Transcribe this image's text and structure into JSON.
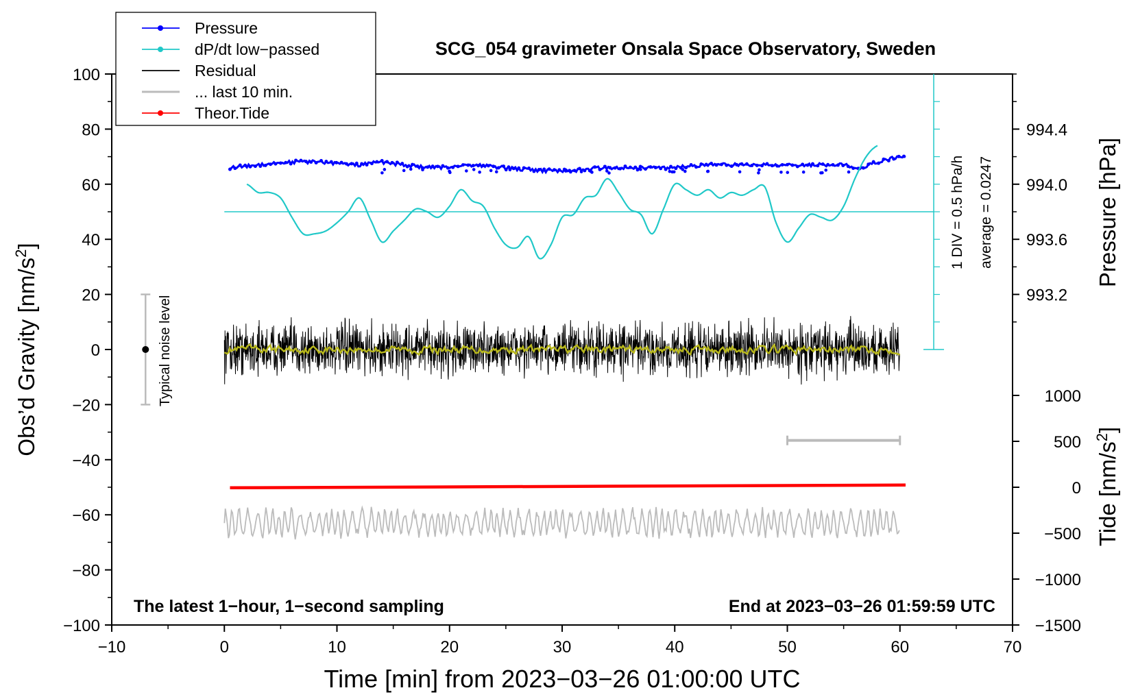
{
  "chart_data": {
    "type": "line",
    "title": "SCG_054 gravimeter Onsala Space Observatory, Sweden",
    "xlabel": "Time [min] from 2023−03−26 01:00:00 UTC",
    "ylabel_left": "Obs’d Gravity [nm/s",
    "ylabel_left_unit_tail": "]",
    "ylabel_right_pressure": "Pressure [hPa]",
    "ylabel_right_tide": "Tide [nm/s",
    "ylabel_right_tide_tail": "]",
    "superscript": "2",
    "xlim": [
      -10,
      70
    ],
    "ylim": [
      -100,
      100
    ],
    "x_ticks": [
      -10,
      0,
      10,
      20,
      30,
      40,
      50,
      60,
      70
    ],
    "x_tick_labels": [
      "−10",
      "0",
      "10",
      "20",
      "30",
      "40",
      "50",
      "60",
      "70"
    ],
    "y_ticks": [
      -100,
      -80,
      -60,
      -40,
      -20,
      0,
      20,
      40,
      60,
      80,
      100
    ],
    "y_tick_labels": [
      "−100",
      "−80",
      "−60",
      "−40",
      "−20",
      "0",
      "20",
      "40",
      "60",
      "80",
      "100"
    ],
    "pressure_axis": {
      "ticks": [
        993.2,
        993.6,
        994.0,
        994.4
      ],
      "tick_labels": [
        "993.2",
        "993.6",
        "994.0",
        "994.4"
      ],
      "gravity_positions": [
        20,
        40,
        60,
        80
      ]
    },
    "tide_axis": {
      "ticks": [
        -1500,
        -1000,
        -500,
        0,
        500,
        1000
      ],
      "tick_labels": [
        "−1500",
        "−1000",
        "−500",
        "0",
        "500",
        "1000"
      ],
      "gravity_positions": [
        -100,
        -83.33,
        -66.67,
        -50,
        -33.33,
        -16.67
      ]
    },
    "legend": {
      "position": "top-left",
      "entries": [
        {
          "label": "Pressure",
          "color": "#0000ff",
          "marker": "dot"
        },
        {
          "label": "dP/dt low−passed",
          "color": "#20c8c8",
          "marker": "dot"
        },
        {
          "label": "Residual",
          "color": "#000000",
          "marker": "none"
        },
        {
          "label": "... last 10 min.",
          "color": "#bbbbbb",
          "marker": "none"
        },
        {
          "label": "Theor.Tide",
          "color": "#ff0000",
          "marker": "dot"
        }
      ]
    },
    "series": [
      {
        "name": "Pressure",
        "color": "#0000ff",
        "x_range": [
          0.5,
          60.5
        ],
        "approx_value_hPa": 994.07,
        "x": [
          0.5,
          3,
          6,
          9,
          12,
          14,
          16,
          19,
          22,
          25,
          28,
          31,
          34,
          37,
          40,
          43,
          46,
          49,
          52,
          55,
          56.5,
          58,
          60.5
        ],
        "y": [
          66,
          67,
          68,
          68,
          67,
          68,
          67,
          66,
          67,
          66,
          65,
          65,
          66,
          66,
          66,
          67,
          67,
          67,
          67,
          67,
          66,
          68,
          70
        ]
      },
      {
        "name": "dP/dt low−passed",
        "color": "#20c8c8",
        "baseline": 50,
        "x": [
          2,
          3,
          4,
          5,
          6,
          7,
          8,
          9,
          10,
          11,
          12,
          13,
          14,
          15,
          16,
          17,
          18,
          19,
          20,
          21,
          22,
          23,
          24,
          25,
          26,
          27,
          28,
          29,
          30,
          31,
          32,
          33,
          34,
          35,
          36,
          37,
          38,
          39,
          40,
          41,
          42,
          43,
          44,
          45,
          46,
          47,
          48,
          49,
          50,
          51,
          52,
          53,
          54,
          55,
          56,
          57,
          58
        ],
        "y": [
          60,
          57,
          57,
          55,
          48,
          42,
          42,
          43,
          46,
          50,
          55,
          47,
          39,
          43,
          47,
          51,
          50,
          48,
          52,
          58,
          54,
          52,
          44,
          38,
          37,
          41,
          33,
          38,
          48,
          49,
          55,
          56,
          62,
          57,
          51,
          49,
          42,
          51,
          60,
          58,
          56,
          58,
          55,
          57,
          56,
          58,
          59,
          46,
          39,
          44,
          49,
          48,
          47,
          52,
          62,
          70,
          74
        ]
      },
      {
        "name": "Residual",
        "color": "#000000",
        "x_range": [
          0,
          60
        ],
        "mean": 0,
        "amplitude_range": [
          -16,
          16
        ]
      },
      {
        "name": "Residual (smoothed)",
        "color": "#b8b81c",
        "x_range": [
          0,
          60
        ],
        "mean": 0
      },
      {
        "name": "... last 10 min.",
        "color": "#bbbbbb",
        "x_range": [
          0,
          60
        ],
        "offset": -60,
        "amplitude_range": [
          -73,
          -52
        ]
      },
      {
        "name": "Theor.Tide",
        "color": "#ff0000",
        "x": [
          0.5,
          60.5
        ],
        "y_tide_nm_s2": [
          -10,
          20
        ],
        "y_gravity": [
          -50.2,
          -49.2
        ]
      }
    ],
    "annotations": {
      "div_scale_label": "1 DIV = 0.5 hPa/h",
      "average_label": "average = 0.0247",
      "noise_label": "Typical noise level",
      "noise_bar": {
        "x": -7,
        "y_range": [
          -20,
          20
        ]
      },
      "last10_bar": {
        "x_range": [
          50,
          60
        ],
        "y": -33
      },
      "footer_left": "The latest 1−hour, 1−second sampling",
      "footer_right": "End at 2023−03−26 01:59:59 UTC"
    }
  }
}
